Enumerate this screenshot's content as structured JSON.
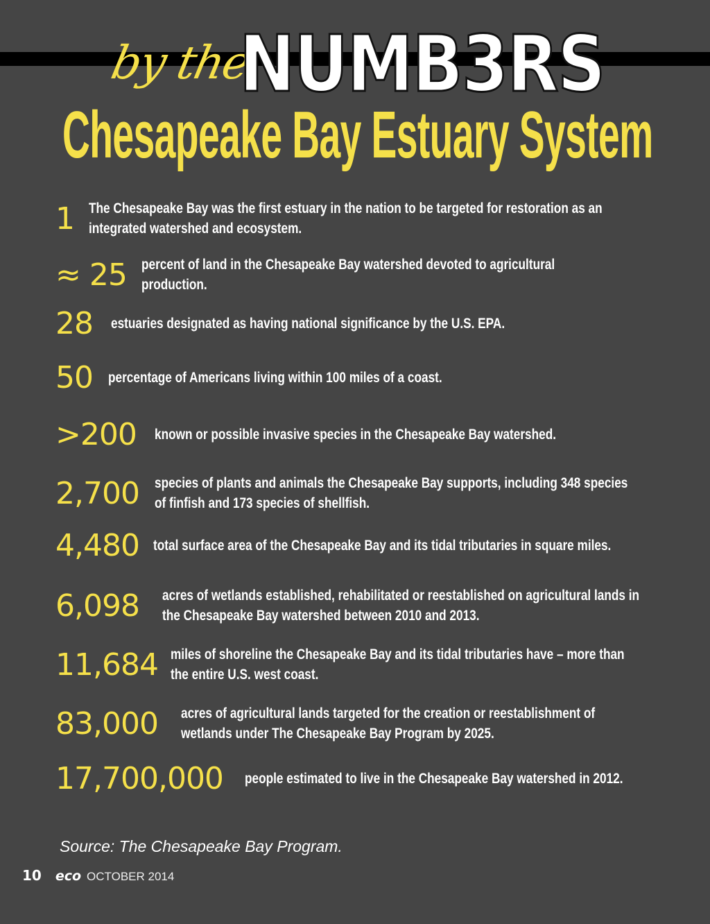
{
  "header": {
    "by_the": "by the",
    "numbers": "NUMB3RS",
    "title": "Chesapeake Bay Estuary System"
  },
  "facts": [
    {
      "number": "1",
      "text": "The Chesapeake Bay was the first estuary in the nation to be targeted for restoration as an integrated watershed and ecosystem."
    },
    {
      "number": "≈ 25",
      "text": "percent of land in the Chesapeake Bay watershed devoted to agricultural production."
    },
    {
      "number": "28",
      "text": "estuaries designated as having national significance by the U.S. EPA."
    },
    {
      "number": "50",
      "text": "percentage of Americans living within 100 miles of a coast."
    },
    {
      "number": ">200",
      "text": "known or possible invasive species in the Chesapeake Bay watershed."
    },
    {
      "number": "2,700",
      "text": "species of plants and animals the Chesapeake Bay supports, including 348 species of finfish and 173 species of shellfish."
    },
    {
      "number": "4,480",
      "text": "total surface area of the Chesapeake Bay and its tidal tributaries in square miles."
    },
    {
      "number": "6,098",
      "text": "acres of wetlands established, rehabilitated or reestablished on agricultural lands in the Chesapeake Bay watershed between 2010 and 2013."
    },
    {
      "number": "11,684",
      "text": "miles of shoreline the Chesapeake Bay and its tidal tributaries have – more than the entire U.S. west coast."
    },
    {
      "number": "83,000",
      "text": "acres of agricultural lands targeted for the creation or reestablishment of wetlands under The Chesapeake Bay Program by 2025."
    },
    {
      "number": "17,700,000",
      "text": "people estimated to live in the Chesapeake Bay watershed in 2012."
    }
  ],
  "source": "Source: The Chesapeake Bay Program.",
  "footer": {
    "page": "10",
    "magazine": "eco",
    "date": "OCTOBER 2014"
  },
  "colors": {
    "background": "#454545",
    "accent": "#f5e04a",
    "bar": "#000000"
  }
}
